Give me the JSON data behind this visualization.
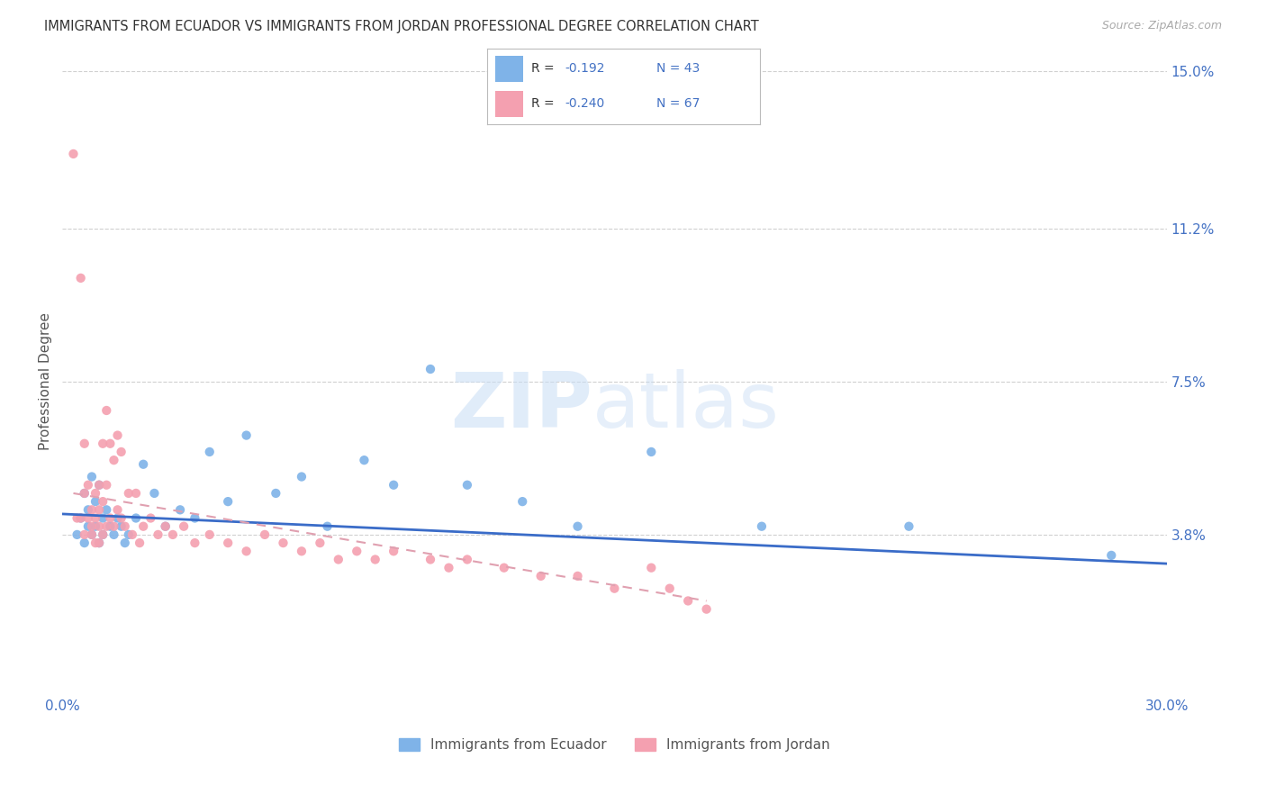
{
  "title": "IMMIGRANTS FROM ECUADOR VS IMMIGRANTS FROM JORDAN PROFESSIONAL DEGREE CORRELATION CHART",
  "source": "Source: ZipAtlas.com",
  "ylabel": "Professional Degree",
  "xlim": [
    0.0,
    0.3
  ],
  "ylim": [
    0.0,
    0.15
  ],
  "ytick_labels_right": [
    "3.8%",
    "7.5%",
    "11.2%",
    "15.0%"
  ],
  "ytick_positions_right": [
    0.038,
    0.075,
    0.112,
    0.15
  ],
  "ecuador_color": "#7fb3e8",
  "jordan_color": "#f4a0b0",
  "ecuador_R": -0.192,
  "ecuador_N": 43,
  "jordan_R": -0.24,
  "jordan_N": 67,
  "ecuador_scatter_x": [
    0.004,
    0.005,
    0.006,
    0.006,
    0.007,
    0.007,
    0.008,
    0.008,
    0.009,
    0.009,
    0.01,
    0.01,
    0.011,
    0.011,
    0.012,
    0.013,
    0.014,
    0.015,
    0.016,
    0.017,
    0.018,
    0.02,
    0.022,
    0.025,
    0.028,
    0.032,
    0.036,
    0.04,
    0.045,
    0.05,
    0.058,
    0.065,
    0.072,
    0.082,
    0.09,
    0.1,
    0.11,
    0.125,
    0.14,
    0.16,
    0.19,
    0.23,
    0.285
  ],
  "ecuador_scatter_y": [
    0.038,
    0.042,
    0.036,
    0.048,
    0.04,
    0.044,
    0.038,
    0.052,
    0.04,
    0.046,
    0.036,
    0.05,
    0.042,
    0.038,
    0.044,
    0.04,
    0.038,
    0.042,
    0.04,
    0.036,
    0.038,
    0.042,
    0.055,
    0.048,
    0.04,
    0.044,
    0.042,
    0.058,
    0.046,
    0.062,
    0.048,
    0.052,
    0.04,
    0.056,
    0.05,
    0.078,
    0.05,
    0.046,
    0.04,
    0.058,
    0.04,
    0.04,
    0.033
  ],
  "jordan_scatter_x": [
    0.003,
    0.004,
    0.005,
    0.005,
    0.006,
    0.006,
    0.006,
    0.007,
    0.007,
    0.008,
    0.008,
    0.008,
    0.009,
    0.009,
    0.009,
    0.01,
    0.01,
    0.01,
    0.01,
    0.011,
    0.011,
    0.011,
    0.012,
    0.012,
    0.012,
    0.013,
    0.013,
    0.014,
    0.014,
    0.015,
    0.015,
    0.016,
    0.016,
    0.017,
    0.018,
    0.019,
    0.02,
    0.021,
    0.022,
    0.024,
    0.026,
    0.028,
    0.03,
    0.033,
    0.036,
    0.04,
    0.045,
    0.05,
    0.055,
    0.06,
    0.065,
    0.07,
    0.075,
    0.08,
    0.085,
    0.09,
    0.1,
    0.105,
    0.11,
    0.12,
    0.13,
    0.14,
    0.15,
    0.16,
    0.165,
    0.17,
    0.175
  ],
  "jordan_scatter_y": [
    0.13,
    0.042,
    0.1,
    0.042,
    0.06,
    0.048,
    0.038,
    0.05,
    0.042,
    0.044,
    0.04,
    0.038,
    0.048,
    0.042,
    0.036,
    0.05,
    0.044,
    0.04,
    0.036,
    0.06,
    0.046,
    0.038,
    0.068,
    0.05,
    0.04,
    0.06,
    0.042,
    0.056,
    0.04,
    0.062,
    0.044,
    0.058,
    0.042,
    0.04,
    0.048,
    0.038,
    0.048,
    0.036,
    0.04,
    0.042,
    0.038,
    0.04,
    0.038,
    0.04,
    0.036,
    0.038,
    0.036,
    0.034,
    0.038,
    0.036,
    0.034,
    0.036,
    0.032,
    0.034,
    0.032,
    0.034,
    0.032,
    0.03,
    0.032,
    0.03,
    0.028,
    0.028,
    0.025,
    0.03,
    0.025,
    0.022,
    0.02
  ],
  "ecuador_trend_x": [
    0.0,
    0.3
  ],
  "ecuador_trend_y": [
    0.043,
    0.031
  ],
  "jordan_trend_x": [
    0.003,
    0.175
  ],
  "jordan_trend_y": [
    0.048,
    0.022
  ],
  "watermark_zip": "ZIP",
  "watermark_atlas": "atlas",
  "background_color": "#ffffff",
  "grid_color": "#d0d0d0",
  "title_color": "#333333",
  "axis_color": "#4472c4",
  "legend_label_ecuador": "Immigrants from Ecuador",
  "legend_label_jordan": "Immigrants from Jordan"
}
